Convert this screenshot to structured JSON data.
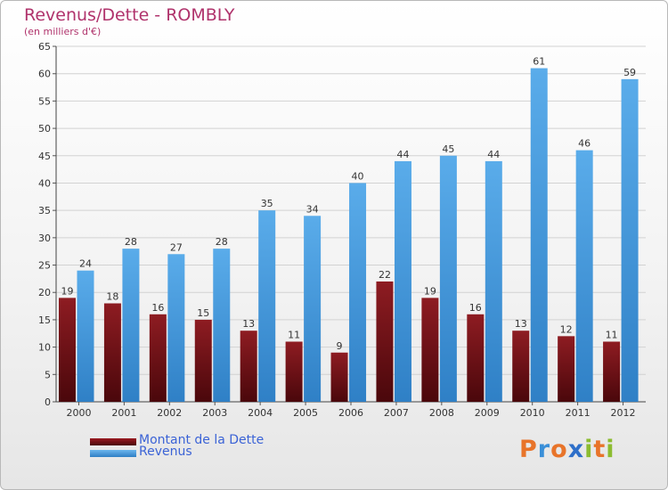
{
  "title": "Revenus/Dette - ROMBLY",
  "subtitle": "(en milliers d'€)",
  "logo_letters": [
    {
      "ch": "P",
      "color": "#e8742a"
    },
    {
      "ch": "r",
      "color": "#3a8fd8"
    },
    {
      "ch": "o",
      "color": "#e8742a"
    },
    {
      "ch": "x",
      "color": "#2e6fc9"
    },
    {
      "ch": "i",
      "color": "#8cbc30"
    },
    {
      "ch": "t",
      "color": "#e8742a"
    },
    {
      "ch": "i",
      "color": "#8cbc30"
    }
  ],
  "legend": {
    "debt": "Montant de la Dette",
    "revenue": "Revenus"
  },
  "colors": {
    "debt": "#7a1218",
    "revenue": "#4b9fe1",
    "title": "#b0336c",
    "legend_text": "#3b63d6"
  },
  "chart_data": {
    "type": "bar",
    "categories": [
      "2000",
      "2001",
      "2002",
      "2003",
      "2004",
      "2005",
      "2006",
      "2007",
      "2008",
      "2009",
      "2010",
      "2011",
      "2012"
    ],
    "series": [
      {
        "name": "Montant de la Dette",
        "values": [
          19,
          18,
          16,
          15,
          13,
          11,
          9,
          22,
          19,
          16,
          13,
          12,
          11
        ]
      },
      {
        "name": "Revenus",
        "values": [
          24,
          28,
          27,
          28,
          35,
          34,
          40,
          44,
          45,
          44,
          61,
          46,
          59
        ]
      }
    ],
    "ylim": [
      0,
      65
    ],
    "yticks": [
      0,
      5,
      10,
      15,
      20,
      25,
      30,
      35,
      40,
      45,
      50,
      55,
      60,
      65
    ],
    "grid": true,
    "legend_position": "bottom-left"
  }
}
